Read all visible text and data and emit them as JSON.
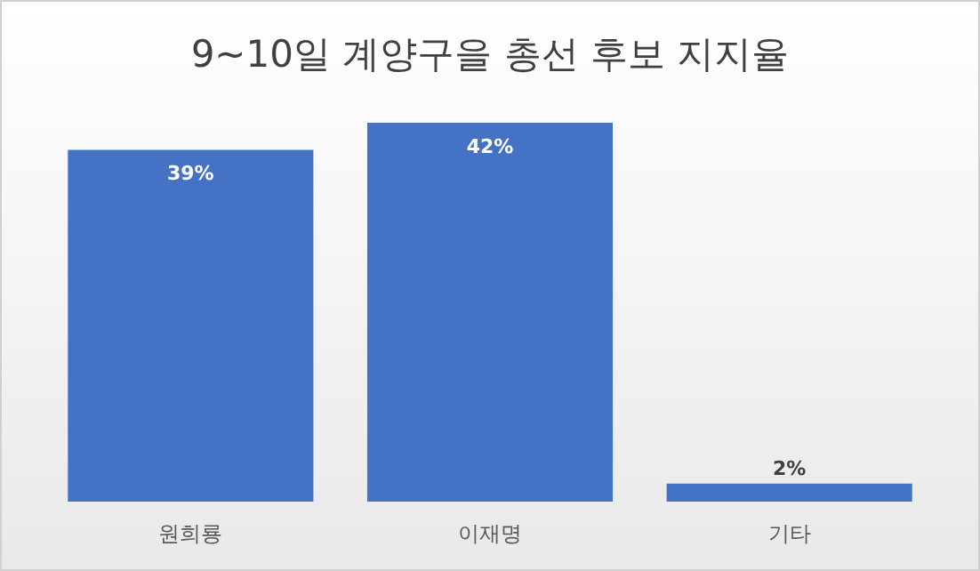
{
  "chart_data": {
    "type": "bar",
    "title": "9~10일 계양구을 총선 후보 지지율",
    "categories": [
      "원희룡",
      "이재명",
      "기타"
    ],
    "values": [
      39,
      42,
      2
    ],
    "color": "#4472c4",
    "value_labels": [
      "39%",
      "42%",
      "2%"
    ],
    "tick_labels": "x"
  }
}
